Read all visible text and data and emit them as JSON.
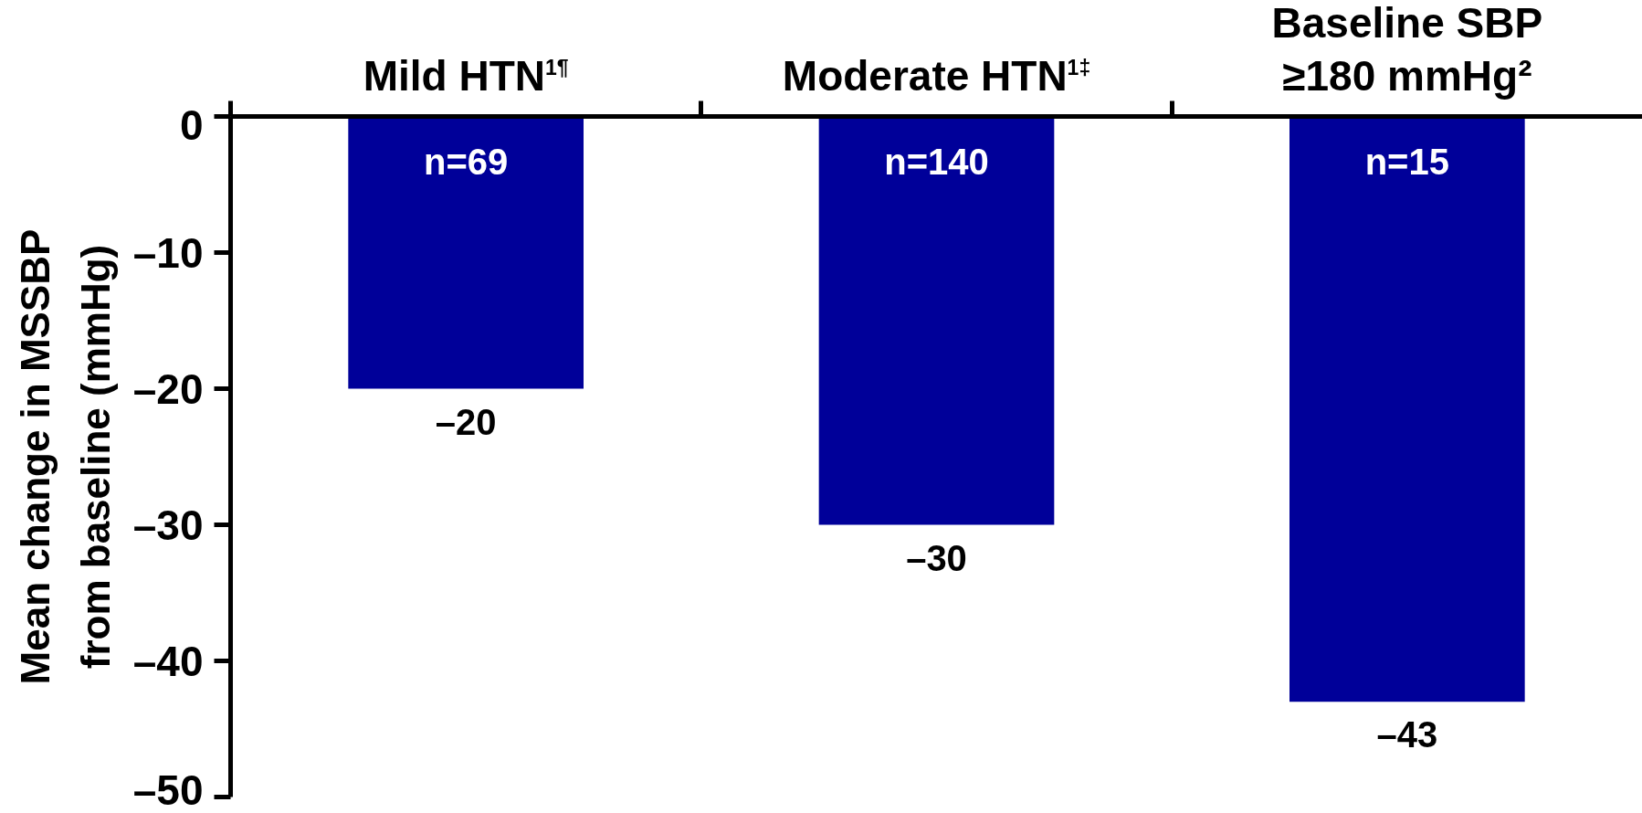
{
  "chart_data": {
    "type": "bar",
    "categories": [
      "Mild HTN$^{1¶}$",
      "Moderate HTN$^{1‡}$",
      "Baseline SBP\n≥180 mmHg²"
    ],
    "values": [
      -20,
      -30,
      -43
    ],
    "color": "#000099",
    "value_labels": [
      "–20",
      "–30",
      "–43"
    ],
    "ylabel": "Mean change in MSSBP\nfrom baseline (mmHg)",
    "ylim": [
      -50,
      0
    ],
    "yticks": [
      0,
      {
        "value": -10,
        "label": "–10"
      },
      {
        "value": -20,
        "label": "–20"
      },
      {
        "value": -30,
        "label": "–30"
      },
      {
        "value": -40,
        "label": "–40"
      },
      {
        "value": -50,
        "label": "–50"
      }
    ],
    "annotations": [
      "n=69",
      "n=140",
      "n=15"
    ]
  }
}
